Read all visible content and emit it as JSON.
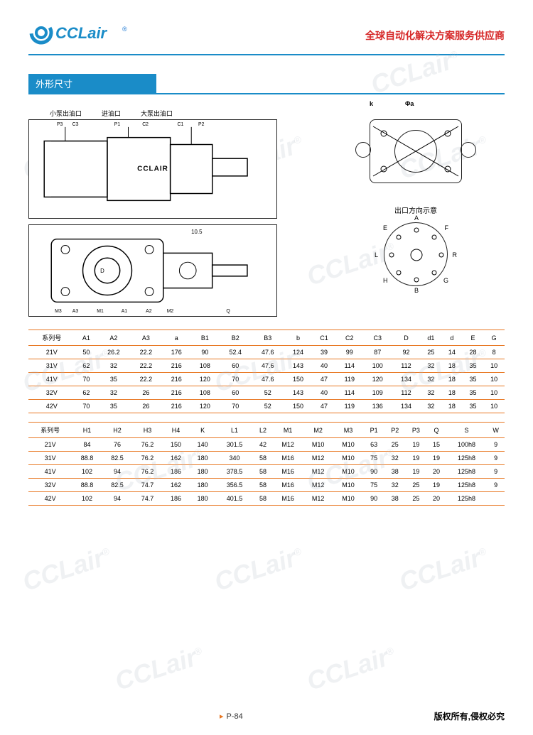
{
  "header": {
    "logo_text": "CCLair",
    "reg_mark": "®",
    "tagline": "全球自动化解决方案服务供应商"
  },
  "section_title": "外形尺寸",
  "diagram": {
    "port_labels": [
      "小泵出油口",
      "进油口",
      "大泵出油口"
    ],
    "cclair_mark": "CCLAIR",
    "top_k": "k",
    "top_a": "Φa",
    "port_direction_title": "出口方向示意",
    "port_letters": {
      "A": "A",
      "F": "F",
      "R": "R",
      "G": "G",
      "B": "B",
      "H": "H",
      "L": "L",
      "E": "E"
    }
  },
  "table1": {
    "header_label": "系列号",
    "columns": [
      "A1",
      "A2",
      "A3",
      "a",
      "B1",
      "B2",
      "B3",
      "b",
      "C1",
      "C2",
      "C3",
      "D",
      "d1",
      "d",
      "E",
      "G"
    ],
    "rows": [
      {
        "series": "21V",
        "cells": [
          "50",
          "26.2",
          "22.2",
          "176",
          "90",
          "52.4",
          "47.6",
          "124",
          "39",
          "99",
          "87",
          "92",
          "25",
          "14",
          "28",
          "8"
        ]
      },
      {
        "series": "31V",
        "cells": [
          "62",
          "32",
          "22.2",
          "216",
          "108",
          "60",
          "47.6",
          "143",
          "40",
          "114",
          "100",
          "112",
          "32",
          "18",
          "35",
          "10"
        ]
      },
      {
        "series": "41V",
        "cells": [
          "70",
          "35",
          "22.2",
          "216",
          "120",
          "70",
          "47.6",
          "150",
          "47",
          "119",
          "120",
          "134",
          "32",
          "18",
          "35",
          "10"
        ]
      },
      {
        "series": "32V",
        "cells": [
          "62",
          "32",
          "26",
          "216",
          "108",
          "60",
          "52",
          "143",
          "40",
          "114",
          "109",
          "112",
          "32",
          "18",
          "35",
          "10"
        ]
      },
      {
        "series": "42V",
        "cells": [
          "70",
          "35",
          "26",
          "216",
          "120",
          "70",
          "52",
          "150",
          "47",
          "119",
          "136",
          "134",
          "32",
          "18",
          "35",
          "10"
        ]
      }
    ]
  },
  "table2": {
    "header_label": "系列号",
    "columns": [
      "H1",
      "H2",
      "H3",
      "H4",
      "K",
      "L1",
      "L2",
      "M1",
      "M2",
      "M3",
      "P1",
      "P2",
      "P3",
      "Q",
      "S",
      "W"
    ],
    "rows": [
      {
        "series": "21V",
        "cells": [
          "84",
          "76",
          "76.2",
          "150",
          "140",
          "301.5",
          "42",
          "M12",
          "M10",
          "M10",
          "63",
          "25",
          "19",
          "15",
          "100h8",
          "9"
        ]
      },
      {
        "series": "31V",
        "cells": [
          "88.8",
          "82.5",
          "76.2",
          "162",
          "180",
          "340",
          "58",
          "M16",
          "M12",
          "M10",
          "75",
          "32",
          "19",
          "19",
          "125h8",
          "9"
        ]
      },
      {
        "series": "41V",
        "cells": [
          "102",
          "94",
          "76.2",
          "186",
          "180",
          "378.5",
          "58",
          "M16",
          "M12",
          "M10",
          "90",
          "38",
          "19",
          "20",
          "125h8",
          "9"
        ]
      },
      {
        "series": "32V",
        "cells": [
          "88.8",
          "82.5",
          "74.7",
          "162",
          "180",
          "356.5",
          "58",
          "M16",
          "M12",
          "M10",
          "75",
          "32",
          "25",
          "19",
          "125h8",
          "9"
        ]
      },
      {
        "series": "42V",
        "cells": [
          "102",
          "94",
          "74.7",
          "186",
          "180",
          "401.5",
          "58",
          "M16",
          "M12",
          "M10",
          "90",
          "38",
          "25",
          "20",
          "125h8",
          ""
        ]
      }
    ]
  },
  "footer": {
    "page": "P-84",
    "copyright": "版权所有,侵权必究"
  },
  "watermark_text": "CCLair",
  "colors": {
    "brand_blue": "#1a8cc8",
    "accent_orange": "#e87722",
    "red": "#d62828"
  }
}
